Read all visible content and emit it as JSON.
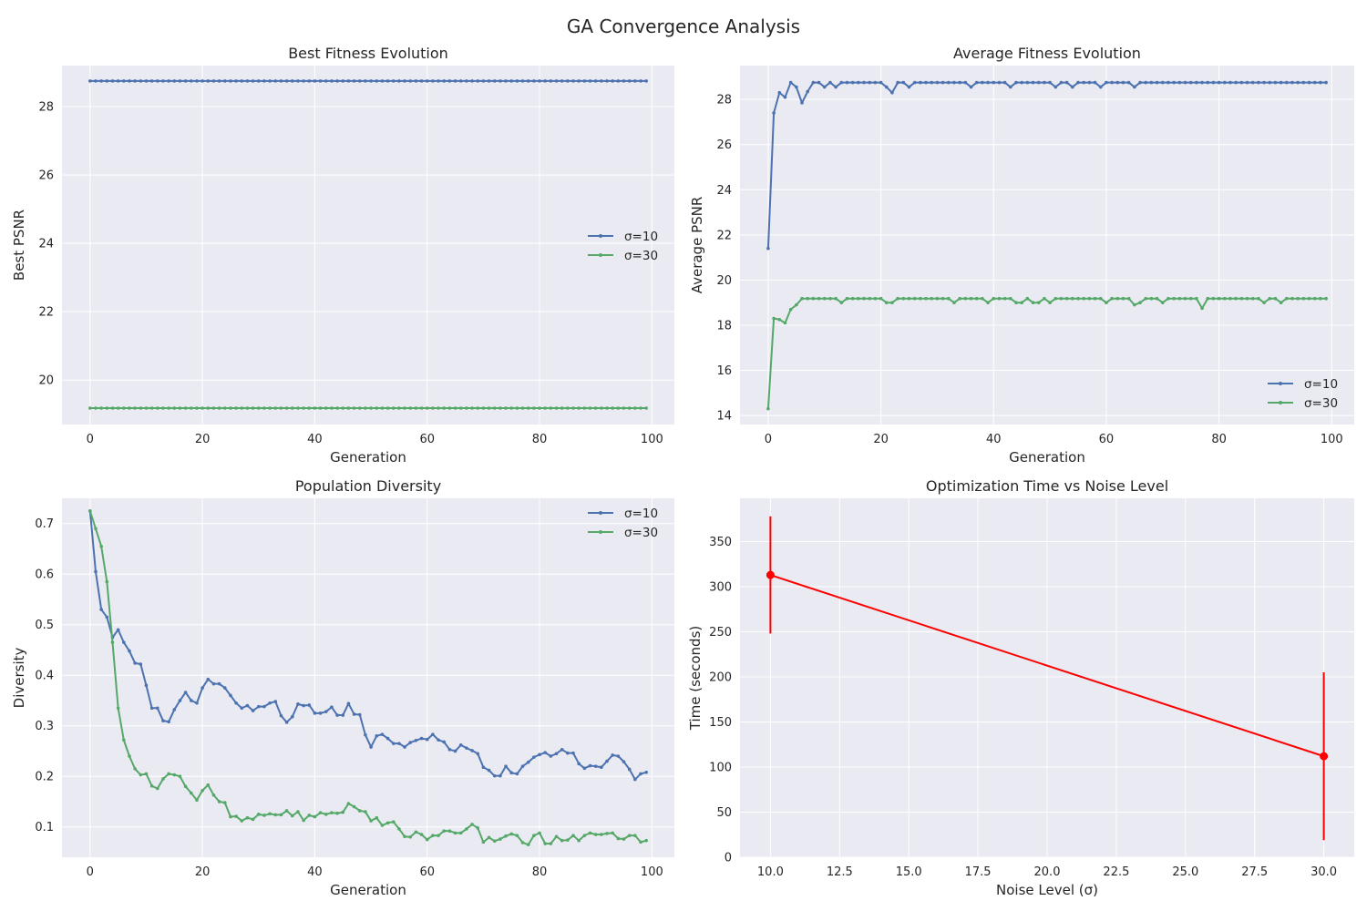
{
  "figure": {
    "suptitle": "GA Convergence Analysis"
  },
  "colors": {
    "background": "#EAEAF2",
    "grid": "#FFFFFF",
    "series_sigma10": "#4C72B0",
    "series_sigma30": "#55A868",
    "errorbar": "#FF0000"
  },
  "chart_data": [
    {
      "type": "line",
      "title": "Best Fitness Evolution",
      "xlabel": "Generation",
      "ylabel": "Best PSNR",
      "xlim": [
        -5,
        104
      ],
      "ylim": [
        18.7,
        29.2
      ],
      "xticks": [
        0,
        20,
        40,
        60,
        80,
        100
      ],
      "yticks": [
        20,
        22,
        24,
        26,
        28
      ],
      "grid": true,
      "legend": "center right",
      "generations": 100,
      "series": [
        {
          "name": "σ=10",
          "constant": 28.75
        },
        {
          "name": "σ=30",
          "constant": 19.18
        }
      ]
    },
    {
      "type": "line",
      "title": "Average Fitness Evolution",
      "xlabel": "Generation",
      "ylabel": "Average PSNR",
      "xlim": [
        -5,
        104
      ],
      "ylim": [
        13.6,
        29.5
      ],
      "xticks": [
        0,
        20,
        40,
        60,
        80,
        100
      ],
      "yticks": [
        14,
        16,
        18,
        20,
        22,
        24,
        26,
        28
      ],
      "grid": true,
      "legend": "lower right",
      "series": [
        {
          "name": "σ=10",
          "values": [
            21.4,
            27.4,
            28.3,
            28.1,
            28.75,
            28.55,
            27.85,
            28.35,
            28.75,
            28.75,
            28.55,
            28.75,
            28.55,
            28.75,
            28.75,
            28.75,
            28.75,
            28.75,
            28.75,
            28.75,
            28.75,
            28.55,
            28.3,
            28.75,
            28.75,
            28.55,
            28.75,
            28.75,
            28.75,
            28.75,
            28.75,
            28.75,
            28.75,
            28.75,
            28.75,
            28.75,
            28.55,
            28.75,
            28.75,
            28.75,
            28.75,
            28.75,
            28.75,
            28.55,
            28.75,
            28.75,
            28.75,
            28.75,
            28.75,
            28.75,
            28.75,
            28.55,
            28.75,
            28.75,
            28.55,
            28.75,
            28.75,
            28.75,
            28.75,
            28.55,
            28.75,
            28.75,
            28.75,
            28.75,
            28.75,
            28.55,
            28.75,
            28.75,
            28.75,
            28.75,
            28.75,
            28.75,
            28.75,
            28.75,
            28.75,
            28.75,
            28.75,
            28.75,
            28.75,
            28.75,
            28.75,
            28.75,
            28.75,
            28.75,
            28.75,
            28.75,
            28.75,
            28.75,
            28.75,
            28.75,
            28.75,
            28.75,
            28.75,
            28.75,
            28.75,
            28.75,
            28.75,
            28.75,
            28.75,
            28.75
          ]
        },
        {
          "name": "σ=30",
          "values": [
            14.3,
            18.3,
            18.25,
            18.1,
            18.7,
            18.9,
            19.18,
            19.18,
            19.18,
            19.18,
            19.18,
            19.18,
            19.18,
            19.0,
            19.18,
            19.18,
            19.18,
            19.18,
            19.18,
            19.18,
            19.18,
            19.0,
            19.0,
            19.18,
            19.18,
            19.18,
            19.18,
            19.18,
            19.18,
            19.18,
            19.18,
            19.18,
            19.18,
            19.0,
            19.18,
            19.18,
            19.18,
            19.18,
            19.18,
            19.0,
            19.18,
            19.18,
            19.18,
            19.18,
            19.0,
            19.0,
            19.18,
            19.0,
            19.0,
            19.18,
            19.0,
            19.18,
            19.18,
            19.18,
            19.18,
            19.18,
            19.18,
            19.18,
            19.18,
            19.18,
            19.0,
            19.18,
            19.18,
            19.18,
            19.18,
            18.9,
            19.0,
            19.18,
            19.18,
            19.18,
            19.0,
            19.18,
            19.18,
            19.18,
            19.18,
            19.18,
            19.18,
            18.75,
            19.18,
            19.18,
            19.18,
            19.18,
            19.18,
            19.18,
            19.18,
            19.18,
            19.18,
            19.18,
            19.0,
            19.18,
            19.18,
            19.0,
            19.18,
            19.18,
            19.18,
            19.18,
            19.18,
            19.18,
            19.18,
            19.18
          ]
        }
      ]
    },
    {
      "type": "line",
      "title": "Population Diversity",
      "xlabel": "Generation",
      "ylabel": "Diversity",
      "xlim": [
        -5,
        104
      ],
      "ylim": [
        0.04,
        0.75
      ],
      "xticks": [
        0,
        20,
        40,
        60,
        80,
        100
      ],
      "yticks": [
        0.1,
        0.2,
        0.3,
        0.4,
        0.5,
        0.6,
        0.7
      ],
      "grid": true,
      "legend": "upper right",
      "series": [
        {
          "name": "σ=10",
          "values": [
            0.725,
            0.605,
            0.53,
            0.515,
            0.475,
            0.49,
            0.465,
            0.448,
            0.424,
            0.422,
            0.38,
            0.335,
            0.335,
            0.31,
            0.308,
            0.332,
            0.35,
            0.366,
            0.35,
            0.345,
            0.375,
            0.392,
            0.383,
            0.383,
            0.375,
            0.36,
            0.345,
            0.335,
            0.34,
            0.33,
            0.338,
            0.338,
            0.345,
            0.348,
            0.32,
            0.307,
            0.318,
            0.343,
            0.34,
            0.341,
            0.325,
            0.325,
            0.328,
            0.337,
            0.321,
            0.321,
            0.344,
            0.323,
            0.322,
            0.282,
            0.258,
            0.28,
            0.283,
            0.275,
            0.265,
            0.265,
            0.258,
            0.267,
            0.271,
            0.275,
            0.273,
            0.283,
            0.272,
            0.268,
            0.253,
            0.25,
            0.262,
            0.256,
            0.251,
            0.245,
            0.218,
            0.212,
            0.201,
            0.201,
            0.22,
            0.207,
            0.205,
            0.22,
            0.228,
            0.238,
            0.243,
            0.247,
            0.24,
            0.245,
            0.253,
            0.246,
            0.246,
            0.225,
            0.216,
            0.221,
            0.22,
            0.218,
            0.23,
            0.242,
            0.24,
            0.229,
            0.214,
            0.194,
            0.205,
            0.208
          ]
        },
        {
          "name": "σ=30",
          "values": [
            0.725,
            0.69,
            0.655,
            0.585,
            0.465,
            0.335,
            0.272,
            0.24,
            0.215,
            0.203,
            0.205,
            0.181,
            0.176,
            0.195,
            0.205,
            0.203,
            0.2,
            0.18,
            0.167,
            0.153,
            0.172,
            0.183,
            0.163,
            0.15,
            0.148,
            0.12,
            0.121,
            0.112,
            0.118,
            0.115,
            0.125,
            0.123,
            0.126,
            0.124,
            0.124,
            0.132,
            0.122,
            0.13,
            0.113,
            0.123,
            0.12,
            0.128,
            0.125,
            0.128,
            0.127,
            0.129,
            0.146,
            0.14,
            0.132,
            0.13,
            0.112,
            0.118,
            0.103,
            0.108,
            0.11,
            0.096,
            0.081,
            0.08,
            0.09,
            0.085,
            0.075,
            0.083,
            0.083,
            0.092,
            0.092,
            0.088,
            0.088,
            0.096,
            0.105,
            0.098,
            0.07,
            0.079,
            0.072,
            0.076,
            0.082,
            0.086,
            0.083,
            0.069,
            0.065,
            0.083,
            0.088,
            0.067,
            0.067,
            0.081,
            0.073,
            0.074,
            0.083,
            0.073,
            0.083,
            0.088,
            0.085,
            0.085,
            0.087,
            0.088,
            0.077,
            0.076,
            0.083,
            0.083,
            0.07,
            0.073
          ]
        }
      ]
    },
    {
      "type": "line",
      "title": "Optimization Time vs Noise Level",
      "xlabel": "Noise Level (σ)",
      "ylabel": "Time (seconds)",
      "xlim": [
        8.9,
        31.1
      ],
      "ylim": [
        0,
        398
      ],
      "xticks": [
        10.0,
        12.5,
        15.0,
        17.5,
        20.0,
        22.5,
        25.0,
        27.5,
        30.0
      ],
      "yticks": [
        0,
        50,
        100,
        150,
        200,
        250,
        300,
        350
      ],
      "grid": true,
      "errorbars": true,
      "x": [
        10,
        30
      ],
      "values": [
        313,
        112
      ],
      "errors": [
        65,
        93
      ]
    }
  ]
}
